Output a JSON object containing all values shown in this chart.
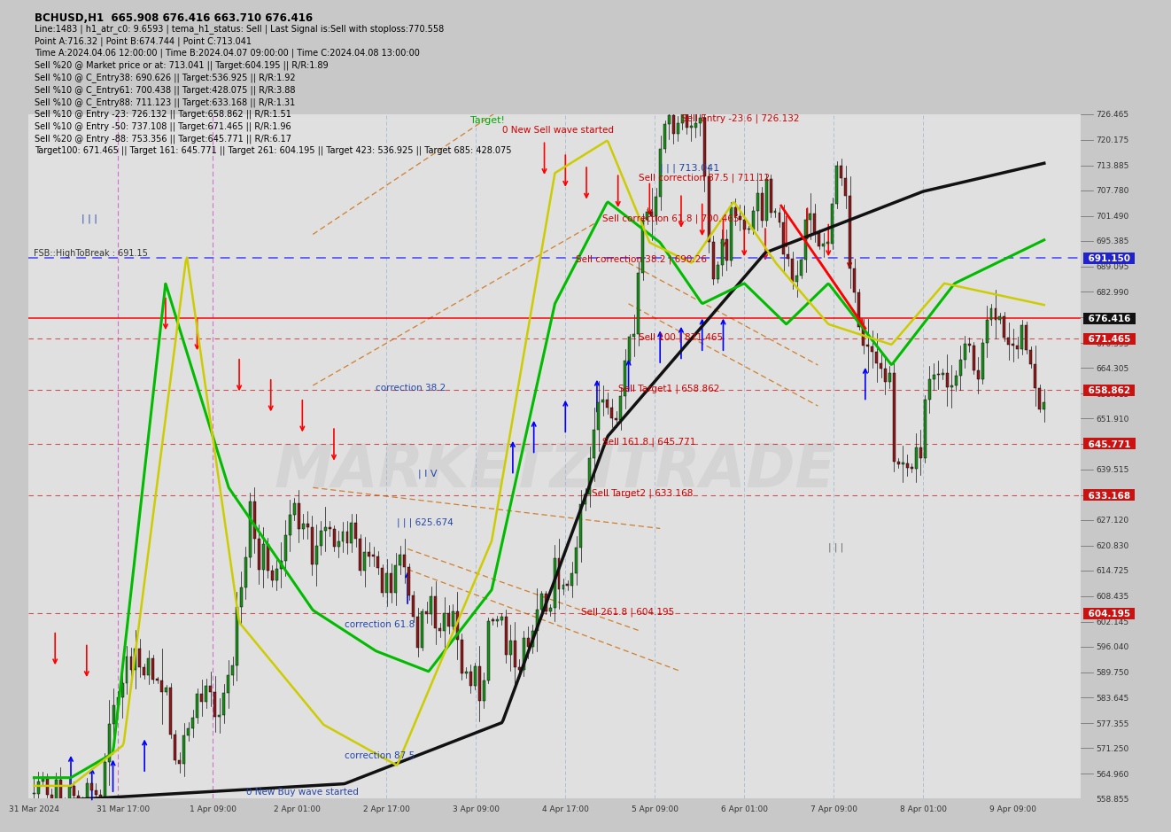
{
  "title": "BCHUSD,H1  665.908 676.416 663.710 676.416",
  "info_lines": [
    "Line:1483 | h1_atr_c0: 9.6593 | tema_h1_status: Sell | Last Signal is:Sell with stoploss:770.558",
    "Point A:716.32 | Point B:674.744 | Point C:713.041",
    "Time A:2024.04.06 12:00:00 | Time B:2024.04.07 09:00:00 | Time C:2024.04.08 13:00:00",
    "Sell %20 @ Market price or at: 713.041 || Target:604.195 || R/R:1.89",
    "Sell %10 @ C_Entry38: 690.626 || Target:536.925 || R/R:1.92",
    "Sell %10 @ C_Entry61: 700.438 || Target:428.075 || R/R:3.88",
    "Sell %10 @ C_Entry88: 711.123 || Target:633.168 || R/R:1.31",
    "Sell %10 @ Entry -23: 726.132 || Target:658.862 || R/R:1.51",
    "Sell %10 @ Entry -50: 737.108 || Target:671.465 || R/R:1.96",
    "Sell %20 @ Entry -88: 753.356 || Target:645.771 || R/R:6.17",
    "Target100: 671.465 || Target 161: 645.771 || Target 261: 604.195 || Target 423: 536.925 || Target 685: 428.075"
  ],
  "y_min": 558.855,
  "y_max": 726.465,
  "ytick_labels": [
    726.465,
    720.175,
    713.885,
    707.78,
    701.49,
    695.385,
    689.095,
    682.99,
    676.7,
    670.395,
    664.305,
    658.015,
    651.91,
    645.62,
    639.515,
    633.225,
    627.12,
    620.83,
    614.725,
    608.435,
    602.145,
    596.04,
    589.75,
    583.645,
    577.355,
    571.25,
    564.96,
    558.855
  ],
  "chart_bg": "#e8e8e8",
  "watermark": "MARKETZITRADE",
  "date_labels": [
    "31 Mar 2024",
    "31 Mar 17:00",
    "1 Apr 09:00",
    "2 Apr 01:00",
    "2 Apr 17:00",
    "3 Apr 09:00",
    "4 Apr 17:00",
    "5 Apr 09:00",
    "6 Apr 01:00",
    "7 Apr 09:00",
    "8 Apr 01:00",
    "9 Apr 09:00"
  ],
  "date_xpos": [
    0.005,
    0.09,
    0.175,
    0.255,
    0.34,
    0.425,
    0.51,
    0.595,
    0.68,
    0.765,
    0.85,
    0.935
  ]
}
